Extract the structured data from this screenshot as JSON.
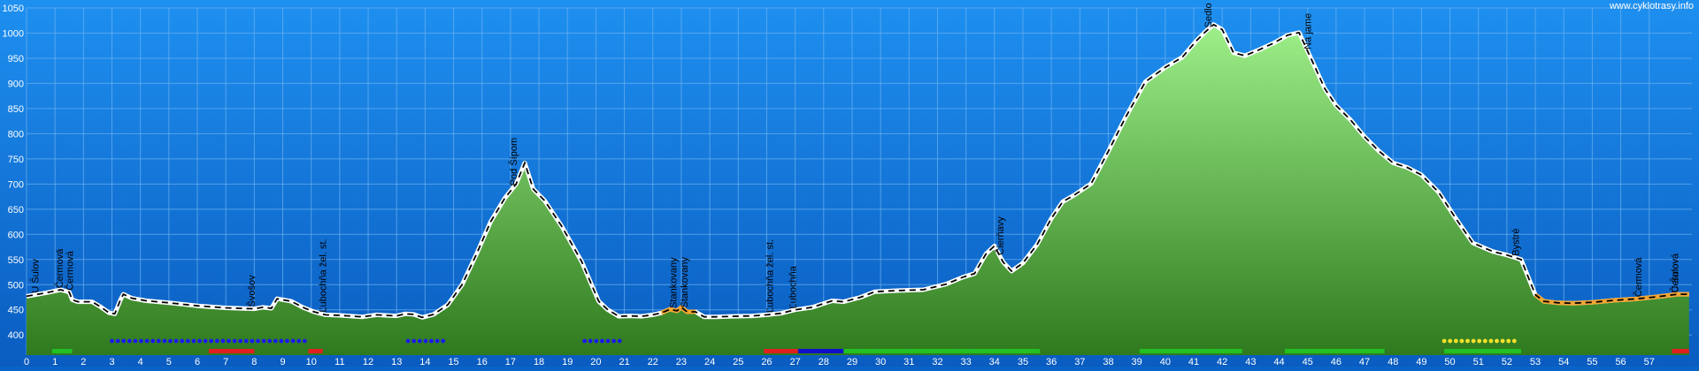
{
  "watermark": "www.cyklotrasy.info",
  "colors": {
    "bg_top": "#1e90f0",
    "bg_bottom": "#0a5cc0",
    "fill_top": "#9ef08a",
    "fill_bottom": "#2f7a1e",
    "asphalt": "#ffffff",
    "gravel": "#f2a531",
    "profile_dash": "#000000",
    "grid": "#6fb2f0",
    "surface_red": "#e02020",
    "surface_blue": "#1010cc",
    "surface_green": "#22c022",
    "dots_blue": "#1a1aee",
    "dots_yellow": "#f6e02a"
  },
  "chart_data": {
    "type": "area",
    "title": "",
    "xlabel": "",
    "ylabel": "",
    "xlim": [
      0,
      58.5
    ],
    "ylim": [
      360,
      1050
    ],
    "x_ticks": [
      "0",
      "1",
      "2",
      "3",
      "4",
      "5",
      "6",
      "7",
      "8",
      "9",
      "10",
      "11",
      "12",
      "13",
      "14",
      "15",
      "16",
      "17",
      "18",
      "19",
      "20",
      "21",
      "22",
      "23",
      "24",
      "25",
      "26",
      "27",
      "28",
      "29",
      "30",
      "31",
      "32",
      "33",
      "34",
      "35",
      "36",
      "37",
      "38",
      "39",
      "40",
      "41",
      "42",
      "43",
      "44",
      "45",
      "46",
      "47",
      "48",
      "49",
      "50",
      "51",
      "52",
      "53",
      "54",
      "55",
      "56",
      "57"
    ],
    "y_ticks": [
      "400",
      "450",
      "500",
      "550",
      "600",
      "650",
      "700",
      "750",
      "800",
      "850",
      "900",
      "950",
      "1000",
      "1050"
    ],
    "grid": true,
    "profile": [
      [
        0,
        477
      ],
      [
        0.7,
        484
      ],
      [
        1.2,
        490
      ],
      [
        1.5,
        485
      ],
      [
        1.6,
        470
      ],
      [
        1.8,
        466
      ],
      [
        2.1,
        466
      ],
      [
        2.3,
        466
      ],
      [
        2.6,
        456
      ],
      [
        2.9,
        444
      ],
      [
        3.1,
        442
      ],
      [
        3.3,
        470
      ],
      [
        3.4,
        481
      ],
      [
        3.7,
        473
      ],
      [
        4.2,
        468
      ],
      [
        5,
        464
      ],
      [
        6,
        458
      ],
      [
        7,
        454
      ],
      [
        8,
        452
      ],
      [
        8.3,
        455
      ],
      [
        8.6,
        453
      ],
      [
        8.8,
        472
      ],
      [
        9.3,
        467
      ],
      [
        9.7,
        455
      ],
      [
        10.1,
        446
      ],
      [
        10.5,
        440
      ],
      [
        11,
        439
      ],
      [
        11.8,
        436
      ],
      [
        12.3,
        440
      ],
      [
        12.6,
        439
      ],
      [
        13,
        438
      ],
      [
        13.3,
        442
      ],
      [
        13.6,
        441
      ],
      [
        13.9,
        435
      ],
      [
        14.3,
        441
      ],
      [
        14.8,
        460
      ],
      [
        15.3,
        500
      ],
      [
        15.8,
        560
      ],
      [
        16.3,
        625
      ],
      [
        16.8,
        672
      ],
      [
        17.2,
        700
      ],
      [
        17.5,
        742
      ],
      [
        17.8,
        690
      ],
      [
        18.2,
        667
      ],
      [
        18.8,
        616
      ],
      [
        19.5,
        546
      ],
      [
        20.1,
        467
      ],
      [
        20.4,
        451
      ],
      [
        20.8,
        437
      ],
      [
        21.2,
        438
      ],
      [
        21.6,
        437
      ],
      [
        22,
        440
      ],
      [
        22.3,
        444
      ],
      [
        22.6,
        451
      ],
      [
        22.85,
        448
      ],
      [
        23,
        455
      ],
      [
        23.2,
        446
      ],
      [
        23.5,
        446
      ],
      [
        23.8,
        436
      ],
      [
        24.2,
        436
      ],
      [
        24.8,
        437
      ],
      [
        25.5,
        438
      ],
      [
        26,
        440
      ],
      [
        26.5,
        443
      ],
      [
        27,
        450
      ],
      [
        27.6,
        455
      ],
      [
        28.3,
        468
      ],
      [
        28.7,
        466
      ],
      [
        29.3,
        475
      ],
      [
        29.8,
        486
      ],
      [
        30.5,
        488
      ],
      [
        31.5,
        490
      ],
      [
        32.3,
        501
      ],
      [
        32.9,
        515
      ],
      [
        33.3,
        522
      ],
      [
        33.7,
        561
      ],
      [
        34,
        577
      ],
      [
        34.3,
        545
      ],
      [
        34.6,
        527
      ],
      [
        35,
        543
      ],
      [
        35.5,
        580
      ],
      [
        36,
        632
      ],
      [
        36.4,
        665
      ],
      [
        36.8,
        678
      ],
      [
        37.4,
        701
      ],
      [
        38,
        765
      ],
      [
        38.6,
        832
      ],
      [
        39.3,
        903
      ],
      [
        40,
        932
      ],
      [
        40.6,
        952
      ],
      [
        41.1,
        985
      ],
      [
        41.4,
        1002
      ],
      [
        41.7,
        1017
      ],
      [
        42,
        1007
      ],
      [
        42.4,
        961
      ],
      [
        42.8,
        955
      ],
      [
        43.3,
        967
      ],
      [
        43.8,
        980
      ],
      [
        44.3,
        996
      ],
      [
        44.7,
        1001
      ],
      [
        45.2,
        940
      ],
      [
        45.6,
        890
      ],
      [
        46,
        856
      ],
      [
        46.5,
        828
      ],
      [
        47,
        794
      ],
      [
        47.5,
        766
      ],
      [
        48,
        742
      ],
      [
        48.5,
        733
      ],
      [
        49,
        718
      ],
      [
        49.6,
        684
      ],
      [
        50.2,
        632
      ],
      [
        50.8,
        583
      ],
      [
        51.5,
        566
      ],
      [
        52,
        559
      ],
      [
        52.5,
        550
      ],
      [
        53,
        480
      ],
      [
        53.3,
        467
      ],
      [
        53.8,
        464
      ],
      [
        54.3,
        463
      ],
      [
        55,
        465
      ],
      [
        55.8,
        469
      ],
      [
        56.6,
        472
      ],
      [
        57.3,
        476
      ],
      [
        58,
        481
      ],
      [
        58.4,
        481
      ]
    ],
    "gravel_segments": [
      [
        22.1,
        23.5
      ],
      [
        52.9,
        58.4
      ]
    ],
    "surface_bars": [
      {
        "color": "green",
        "from": 0.9,
        "to": 1.6
      },
      {
        "color": "red",
        "from": 6.4,
        "to": 8.0
      },
      {
        "color": "red",
        "from": 9.9,
        "to": 10.4
      },
      {
        "color": "red",
        "from": 25.9,
        "to": 27.1
      },
      {
        "color": "blue",
        "from": 27.1,
        "to": 28.7
      },
      {
        "color": "green",
        "from": 28.7,
        "to": 35.6
      },
      {
        "color": "green",
        "from": 39.1,
        "to": 42.7
      },
      {
        "color": "green",
        "from": 44.2,
        "to": 47.7
      },
      {
        "color": "green",
        "from": 49.8,
        "to": 52.5
      },
      {
        "color": "red",
        "from": 57.8,
        "to": 58.4
      }
    ],
    "marker_dots": [
      {
        "color": "blue",
        "from": 3.0,
        "to": 9.8
      },
      {
        "color": "blue",
        "from": 13.4,
        "to": 14.8
      },
      {
        "color": "blue",
        "from": 19.6,
        "to": 21.0
      },
      {
        "color": "yellow",
        "from": 49.8,
        "to": 52.3
      }
    ],
    "annotations": [
      {
        "x": 0.3,
        "text": "U Šulov"
      },
      {
        "x": 1.15,
        "text": "Čermová"
      },
      {
        "x": 1.5,
        "text": "Čermová"
      },
      {
        "x": 7.9,
        "text": "Švošov"
      },
      {
        "x": 10.4,
        "text": "Ľubochňa žel. st."
      },
      {
        "x": 17.1,
        "text": "Pod Šípom"
      },
      {
        "x": 22.7,
        "text": "Stankovany"
      },
      {
        "x": 23.1,
        "text": "Stankovany"
      },
      {
        "x": 26.1,
        "text": "Ľubochňa žel. st."
      },
      {
        "x": 26.9,
        "text": "Ľubochňa"
      },
      {
        "x": 34.2,
        "text": "Čierňavy"
      },
      {
        "x": 41.5,
        "text": "Sedlo pod Červeným grúňom"
      },
      {
        "x": 45.0,
        "text": "Na jame"
      },
      {
        "x": 52.3,
        "text": "Bystré"
      },
      {
        "x": 56.6,
        "text": "Čermová"
      },
      {
        "x": 57.9,
        "text": "Čermová"
      },
      {
        "x": 57.9,
        "text": "U Šulov"
      }
    ]
  }
}
